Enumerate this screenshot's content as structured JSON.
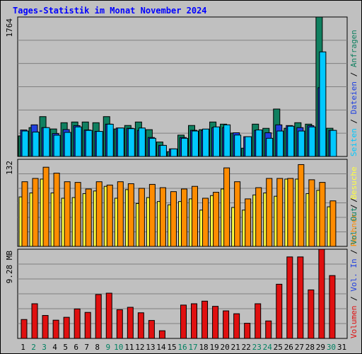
{
  "title": "Tages-Statistik im Monat November 2024",
  "colors": {
    "anfragen": "#108060",
    "dateien": "#2040e0",
    "seiten": "#00c8ff",
    "besuche": "#ffff40",
    "rechner": "#ff8c00",
    "volumen": "#e01010",
    "weekend_day": "#008060",
    "weekday": "#000000",
    "panel_bg": "#c0c0c0",
    "grid": "#808080"
  },
  "chart_data": [
    {
      "type": "bar",
      "panel": "top",
      "scale_label": "1764",
      "ylim": [
        0,
        1764
      ],
      "legend": [
        "Anfragen",
        "Dateien",
        "Seiten"
      ],
      "x": [
        1,
        2,
        3,
        4,
        5,
        6,
        7,
        8,
        9,
        10,
        11,
        12,
        13,
        14,
        15,
        16,
        17,
        18,
        19,
        20,
        21,
        22,
        23,
        24,
        25,
        26,
        27,
        28,
        29,
        30,
        31
      ],
      "series": [
        {
          "name": "Anfragen",
          "values": [
            260,
            365,
            504,
            348,
            427,
            436,
            436,
            427,
            504,
            348,
            392,
            436,
            339,
            183,
            61,
            270,
            392,
            339,
            436,
            409,
            296,
            105,
            409,
            356,
            600,
            357,
            427,
            409,
            1764,
            357,
            0
          ]
        },
        {
          "name": "Dateien",
          "values": [
            335,
            400,
            365,
            290,
            340,
            390,
            335,
            317,
            409,
            360,
            357,
            330,
            240,
            140,
            96,
            240,
            331,
            330,
            365,
            365,
            300,
            250,
            330,
            300,
            400,
            391,
            365,
            390,
            870,
            330,
            0
          ]
        },
        {
          "name": "Seiten",
          "values": [
            322,
            309,
            365,
            269,
            305,
            374,
            330,
            317,
            408,
            360,
            352,
            360,
            230,
            140,
            96,
            230,
            322,
            347,
            374,
            400,
            271,
            250,
            335,
            230,
            322,
            383,
            322,
            374,
            1323,
            330,
            0
          ]
        }
      ]
    },
    {
      "type": "bar",
      "panel": "middle",
      "scale_label": "132",
      "ylim": [
        0,
        132
      ],
      "legend": [
        "Besuche",
        "Rechner"
      ],
      "x": [
        1,
        2,
        3,
        4,
        5,
        6,
        7,
        8,
        9,
        10,
        11,
        12,
        13,
        14,
        15,
        16,
        17,
        18,
        19,
        20,
        21,
        22,
        23,
        24,
        25,
        26,
        27,
        28,
        29,
        30,
        31
      ],
      "series": [
        {
          "name": "Besuche",
          "values": [
            75,
            81,
            102,
            81,
            73,
            74,
            80,
            84,
            91,
            73,
            86,
            65,
            74,
            68,
            63,
            68,
            72,
            55,
            77,
            87,
            59,
            55,
            78,
            81,
            76,
            102,
            102,
            80,
            85,
            60,
            0
          ]
        },
        {
          "name": "Rechner",
          "values": [
            98,
            103,
            120,
            111,
            98,
            97,
            87,
            98,
            93,
            98,
            95,
            88,
            94,
            89,
            83,
            87,
            91,
            73,
            82,
            119,
            98,
            72,
            89,
            103,
            103,
            103,
            124,
            101,
            97,
            69,
            0
          ]
        }
      ]
    },
    {
      "type": "bar",
      "panel": "bottom",
      "scale_label": "9.28 MB",
      "ylim": [
        0,
        9.28
      ],
      "legend": [
        "Volumen"
      ],
      "x": [
        1,
        2,
        3,
        4,
        5,
        6,
        7,
        8,
        9,
        10,
        11,
        12,
        13,
        14,
        15,
        16,
        17,
        18,
        19,
        20,
        21,
        22,
        23,
        24,
        25,
        26,
        27,
        28,
        29,
        30,
        31
      ],
      "series": [
        {
          "name": "Volumen",
          "values": [
            1.97,
            3.61,
            2.39,
            1.9,
            2.2,
            3.07,
            2.71,
            4.57,
            4.71,
            2.99,
            3.24,
            2.67,
            1.87,
            0.8,
            0.0,
            3.47,
            3.61,
            3.88,
            3.34,
            2.87,
            2.57,
            1.58,
            3.61,
            1.82,
            5.64,
            8.48,
            8.48,
            5.05,
            9.28,
            6.54,
            0
          ]
        }
      ]
    }
  ],
  "days": [
    "1",
    "2",
    "3",
    "4",
    "5",
    "6",
    "7",
    "8",
    "9",
    "10",
    "11",
    "12",
    "13",
    "14",
    "15",
    "16",
    "17",
    "18",
    "19",
    "20",
    "21",
    "22",
    "23",
    "24",
    "25",
    "26",
    "27",
    "28",
    "29",
    "30",
    "31"
  ],
  "weekend_days": [
    "2",
    "3",
    "9",
    "10",
    "16",
    "17",
    "23",
    "24",
    "30"
  ]
}
